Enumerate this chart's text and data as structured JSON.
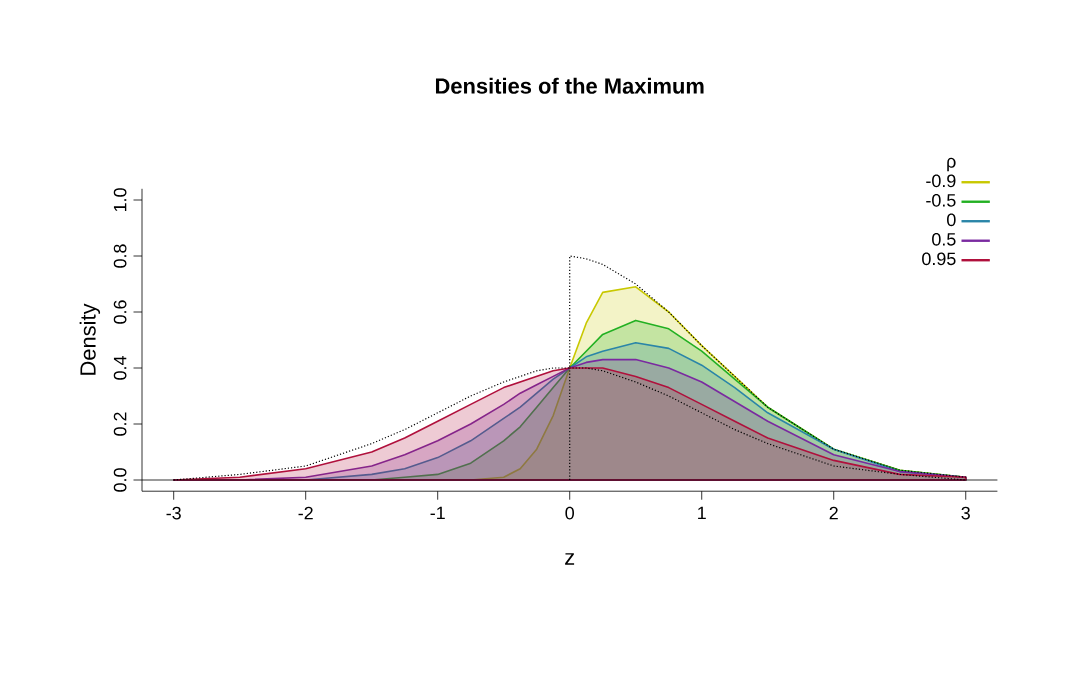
{
  "chart_data": {
    "type": "area",
    "title": "Densities of the Maximum",
    "xlabel": "z",
    "ylabel": "Density",
    "legend_title": "ρ",
    "legend": "top right",
    "x": [
      -3,
      -2.5,
      -2,
      -1.5,
      -1.25,
      -1,
      -0.75,
      -0.5,
      -0.375,
      -0.25,
      -0.125,
      0,
      0.125,
      0.25,
      0.5,
      0.75,
      1,
      1.25,
      1.5,
      2,
      2.5,
      3
    ],
    "series": [
      {
        "name": "-0.9",
        "color": "#c8c800",
        "values": [
          0,
          0,
          0,
          0,
          0,
          0,
          0,
          0.01,
          0.04,
          0.11,
          0.23,
          0.4,
          0.56,
          0.67,
          0.69,
          0.6,
          0.48,
          0.37,
          0.26,
          0.11,
          0.035,
          0.01
        ]
      },
      {
        "name": "-0.5",
        "color": "#22b022",
        "values": [
          0,
          0,
          0,
          0,
          0.01,
          0.02,
          0.06,
          0.14,
          0.19,
          0.26,
          0.33,
          0.4,
          0.46,
          0.52,
          0.57,
          0.54,
          0.46,
          0.36,
          0.26,
          0.11,
          0.035,
          0.01
        ]
      },
      {
        "name": "0",
        "color": "#2a85a8",
        "values": [
          0,
          0,
          0,
          0.02,
          0.04,
          0.08,
          0.14,
          0.22,
          0.26,
          0.31,
          0.36,
          0.4,
          0.44,
          0.46,
          0.49,
          0.47,
          0.41,
          0.33,
          0.24,
          0.11,
          0.03,
          0.01
        ]
      },
      {
        "name": "0.5",
        "color": "#7a2aa0",
        "values": [
          0,
          0,
          0.01,
          0.05,
          0.09,
          0.14,
          0.2,
          0.27,
          0.31,
          0.34,
          0.37,
          0.4,
          0.42,
          0.43,
          0.43,
          0.4,
          0.35,
          0.28,
          0.21,
          0.09,
          0.03,
          0.01
        ]
      },
      {
        "name": "0.95",
        "color": "#b0103c",
        "values": [
          0,
          0.01,
          0.04,
          0.1,
          0.15,
          0.21,
          0.27,
          0.33,
          0.35,
          0.37,
          0.39,
          0.4,
          0.4,
          0.4,
          0.37,
          0.33,
          0.27,
          0.21,
          0.15,
          0.07,
          0.02,
          0.01
        ]
      },
      {
        "type": "line",
        "line_style": "dotted",
        "color": "#000000",
        "x": [
          -3,
          -2.5,
          -2,
          -1.5,
          -1.25,
          -1,
          -0.75,
          -0.5,
          -0.375,
          -0.25,
          -0.125,
          0,
          0,
          0.125,
          0.25,
          0.5,
          0.75,
          1,
          1.25,
          1.5,
          2,
          2.5,
          3
        ],
        "values": [
          0,
          0.02,
          0.05,
          0.13,
          0.18,
          0.24,
          0.3,
          0.35,
          0.37,
          0.39,
          0.4,
          0.4,
          0.8,
          0.79,
          0.77,
          0.7,
          0.6,
          0.48,
          0.37,
          0.26,
          0.11,
          0.035,
          0.01
        ]
      },
      {
        "type": "line",
        "line_style": "dotted",
        "color": "#000000",
        "x": [
          0,
          0,
          0.125,
          0.25,
          0.5,
          0.75,
          1,
          1.25,
          1.5,
          2,
          2.5,
          3
        ],
        "values": [
          0,
          0.4,
          0.4,
          0.39,
          0.35,
          0.3,
          0.24,
          0.18,
          0.13,
          0.05,
          0.02,
          0
        ]
      }
    ],
    "ref_lines": [
      {
        "axis": "y",
        "value": 0,
        "color": "#000000",
        "line_style": "solid"
      }
    ],
    "xlim": [
      -3.24,
      3.24
    ],
    "ylim": [
      -0.04,
      1.04
    ],
    "xticks": [
      -3,
      -2,
      -1,
      0,
      1,
      2,
      3
    ],
    "yticks": [
      {
        "value": 0,
        "label": "0.0"
      },
      0.2,
      0.4,
      0.6,
      0.8,
      {
        "value": 1,
        "label": "1.0"
      }
    ]
  }
}
